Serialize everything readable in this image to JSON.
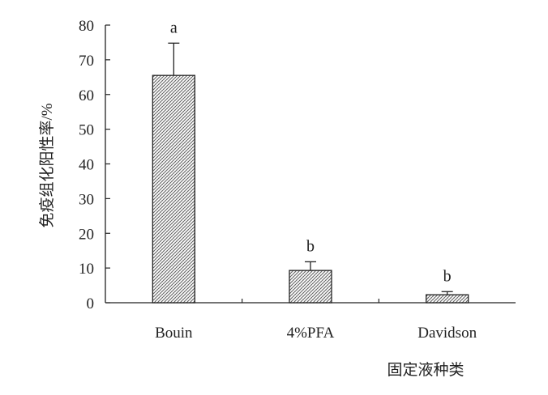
{
  "chart_data": {
    "type": "bar",
    "categories": [
      "Bouin",
      "4%PFA",
      "Davidson"
    ],
    "values": [
      65.5,
      9.3,
      2.3
    ],
    "errors": [
      9.3,
      2.5,
      0.9
    ],
    "significance": [
      "a",
      "b",
      "b"
    ],
    "xlabel": "固定液种类",
    "ylabel": "免疫组化阳性率/%",
    "ylim": [
      0,
      80
    ],
    "yticks": [
      0,
      10,
      20,
      30,
      40,
      50,
      60,
      70,
      80
    ],
    "grid": false,
    "legend": "none",
    "bar_fill": "hatched",
    "colors": {
      "axis": "#222222",
      "bar_stroke": "#222222",
      "hatch": "#555555"
    }
  }
}
